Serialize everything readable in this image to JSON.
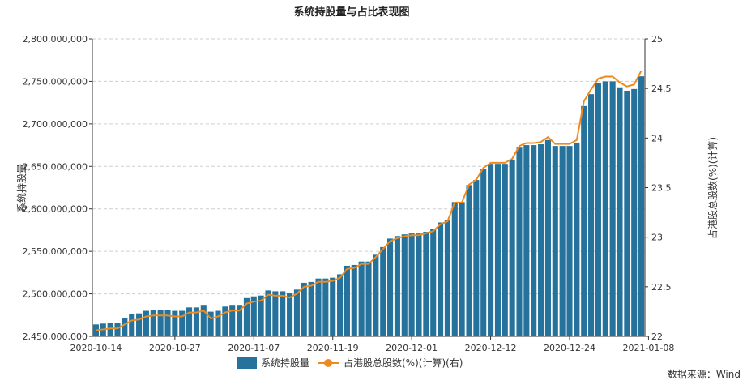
{
  "chart_data": {
    "type": "bar+line",
    "title": "系统持股量与占比表现图",
    "source": "数据来源：Wind",
    "ylabel_left": "系统持股量",
    "ylabel_right": "占港股总股数(%)(计算)",
    "ylim_left": [
      2450000000,
      2800000000
    ],
    "yticks_left": [
      "2,450,000,000",
      "2,500,000,000",
      "2,550,000,000",
      "2,600,000,000",
      "2,650,000,000",
      "2,700,000,000",
      "2,750,000,000",
      "2,800,000,000"
    ],
    "ylim_right": [
      22,
      25
    ],
    "yticks_right": [
      "22",
      "22.5",
      "23",
      "23.5",
      "24",
      "24.5",
      "25"
    ],
    "x_tick_labels": [
      "2020-10-14",
      "2020-10-27",
      "2020-11-07",
      "2020-11-19",
      "2020-12-01",
      "2020-12-12",
      "2020-12-24",
      "2021-01-08"
    ],
    "grid": true,
    "legend_position": "bottom",
    "colors": {
      "bars": "#25739c",
      "line": "#ef8a1c"
    },
    "series": [
      {
        "name": "系统持股量",
        "kind": "bar",
        "axis": "left",
        "values": [
          2464000000,
          2465000000,
          2466000000,
          2466000000,
          2471000000,
          2476000000,
          2477000000,
          2480000000,
          2481000000,
          2481000000,
          2481000000,
          2480000000,
          2480000000,
          2484000000,
          2484000000,
          2487000000,
          2479000000,
          2480000000,
          2485000000,
          2487000000,
          2487000000,
          2495000000,
          2497000000,
          2498000000,
          2504000000,
          2503000000,
          2503000000,
          2501000000,
          2505000000,
          2513000000,
          2514000000,
          2518000000,
          2518000000,
          2519000000,
          2523000000,
          2533000000,
          2534000000,
          2538000000,
          2538000000,
          2546000000,
          2555000000,
          2565000000,
          2568000000,
          2570000000,
          2571000000,
          2571000000,
          2573000000,
          2576000000,
          2584000000,
          2587000000,
          2608000000,
          2608000000,
          2628000000,
          2634000000,
          2647000000,
          2653000000,
          2653000000,
          2653000000,
          2658000000,
          2672000000,
          2675000000,
          2675000000,
          2676000000,
          2681000000,
          2674000000,
          2674000000,
          2674000000,
          2678000000,
          2721000000,
          2735000000,
          2748000000,
          2750000000,
          2750000000,
          2743000000,
          2739000000,
          2741000000,
          2756000000
        ]
      },
      {
        "name": "占港股总股数(%)(计算)(右)",
        "kind": "line",
        "axis": "right",
        "values": [
          22.06,
          22.07,
          22.08,
          22.08,
          22.12,
          22.16,
          22.17,
          22.2,
          22.21,
          22.21,
          22.21,
          22.2,
          22.2,
          22.24,
          22.24,
          22.26,
          22.18,
          22.2,
          22.24,
          22.26,
          22.26,
          22.33,
          22.35,
          22.36,
          22.42,
          22.41,
          22.41,
          22.39,
          22.43,
          22.5,
          22.51,
          22.55,
          22.55,
          22.56,
          22.59,
          22.68,
          22.69,
          22.73,
          22.73,
          22.8,
          22.88,
          22.96,
          22.99,
          23.01,
          23.02,
          23.02,
          23.04,
          23.06,
          23.13,
          23.16,
          23.35,
          23.35,
          23.53,
          23.58,
          23.7,
          23.75,
          23.75,
          23.75,
          23.79,
          23.92,
          23.95,
          23.95,
          23.96,
          24.01,
          23.94,
          23.94,
          23.94,
          23.98,
          24.37,
          24.49,
          24.6,
          24.62,
          24.62,
          24.56,
          24.52,
          24.54,
          24.68
        ]
      }
    ]
  }
}
